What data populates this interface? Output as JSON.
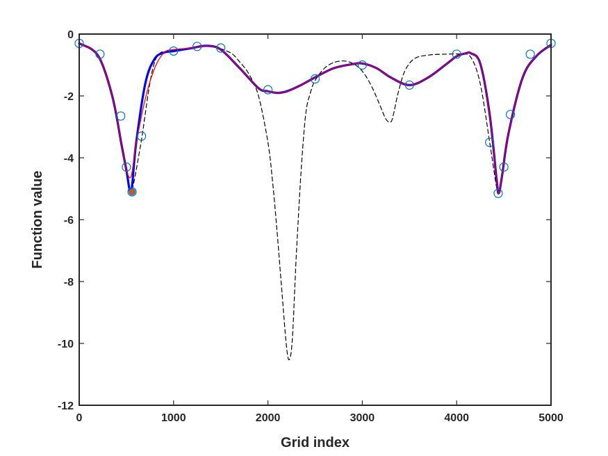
{
  "chart_data": {
    "type": "line",
    "title": "",
    "xlabel": "Grid index",
    "ylabel": "Function value",
    "xlim": [
      0,
      5000
    ],
    "ylim": [
      -12,
      0
    ],
    "grid": false,
    "box": true,
    "xticks": [
      0,
      1000,
      2000,
      3000,
      4000,
      5000
    ],
    "xtick_labels": [
      "0",
      "1000",
      "2000",
      "3000",
      "4000",
      "5000"
    ],
    "yticks": [
      0,
      -2,
      -4,
      -6,
      -8,
      -10,
      -12
    ],
    "ytick_labels": [
      "0",
      "-2",
      "-4",
      "-6",
      "-8",
      "-10",
      "-12"
    ],
    "series": [
      {
        "style": "dashed",
        "color": "#000000",
        "x": [
          0,
          200,
          350,
          450,
          500,
          550,
          650,
          800,
          1000,
          1200,
          1400,
          1600,
          1700,
          1800,
          1900,
          2000,
          2050,
          2100,
          2150,
          2200,
          2230,
          2260,
          2300,
          2350,
          2400,
          2450,
          2500,
          2600,
          2700,
          2800,
          2900,
          3000,
          3100,
          3200,
          3250,
          3300,
          3330,
          3380,
          3450,
          3550,
          3700,
          3900,
          4050,
          4150,
          4250,
          4350,
          4420,
          4445,
          4480,
          4550,
          4700,
          4850,
          5000
        ],
        "y": [
          -0.3,
          -0.7,
          -2.0,
          -3.6,
          -4.3,
          -5.1,
          -3.6,
          -0.9,
          -0.55,
          -0.45,
          -0.4,
          -0.6,
          -0.9,
          -1.3,
          -2.0,
          -3.5,
          -4.8,
          -6.5,
          -8.4,
          -10.2,
          -10.5,
          -9.8,
          -7.2,
          -4.5,
          -2.6,
          -1.9,
          -1.5,
          -1.1,
          -0.92,
          -0.87,
          -0.95,
          -1.2,
          -1.7,
          -2.4,
          -2.75,
          -2.85,
          -2.6,
          -1.9,
          -1.2,
          -0.8,
          -0.68,
          -0.65,
          -0.65,
          -0.75,
          -1.6,
          -3.5,
          -4.9,
          -5.15,
          -4.6,
          -3.2,
          -1.4,
          -0.7,
          -0.35
        ]
      },
      {
        "style": "solid",
        "color": "#ff0000",
        "x": [
          0,
          200,
          350,
          450,
          500,
          550,
          600,
          700,
          800,
          900,
          1000,
          1200,
          1350,
          1500,
          1700,
          1900,
          2000,
          2100,
          2200,
          2350,
          2500,
          2700,
          2900,
          3000,
          3150,
          3300,
          3500,
          3700,
          3900,
          4000,
          4100,
          4150,
          4250,
          4350,
          4420,
          4445,
          4480,
          4550,
          4700,
          4850,
          5000
        ],
        "y": [
          -0.3,
          -0.7,
          -2.0,
          -3.6,
          -4.4,
          -4.6,
          -3.6,
          -2.1,
          -1.1,
          -0.6,
          -0.5,
          -0.45,
          -0.38,
          -0.5,
          -1.1,
          -1.75,
          -1.85,
          -1.9,
          -1.85,
          -1.65,
          -1.4,
          -1.1,
          -0.97,
          -0.95,
          -1.1,
          -1.4,
          -1.65,
          -1.4,
          -0.95,
          -0.72,
          -0.62,
          -0.62,
          -0.95,
          -2.6,
          -4.6,
          -5.15,
          -4.6,
          -3.2,
          -1.4,
          -0.7,
          -0.35
        ]
      },
      {
        "style": "solid-thick",
        "color": "#0000ff",
        "x": [
          0,
          200,
          350,
          450,
          500,
          550,
          600,
          700,
          800,
          900,
          1000,
          1200,
          1350,
          1500,
          1700,
          1900,
          2000,
          2100,
          2200,
          2350,
          2500,
          2700,
          2900,
          3000,
          3150,
          3300,
          3500,
          3700,
          3900,
          4000,
          4100,
          4150,
          4250,
          4350,
          4420,
          4445,
          4480,
          4550,
          4700,
          4850,
          5000
        ],
        "y": [
          -0.3,
          -0.7,
          -2.0,
          -3.6,
          -4.4,
          -5.1,
          -3.6,
          -1.6,
          -0.8,
          -0.6,
          -0.55,
          -0.45,
          -0.38,
          -0.5,
          -1.1,
          -1.75,
          -1.85,
          -1.9,
          -1.85,
          -1.65,
          -1.4,
          -1.1,
          -0.97,
          -0.95,
          -1.1,
          -1.4,
          -1.65,
          -1.4,
          -0.95,
          -0.72,
          -0.62,
          -0.62,
          -0.95,
          -2.6,
          -4.6,
          -5.15,
          -4.6,
          -3.2,
          -1.4,
          -0.7,
          -0.35
        ]
      },
      {
        "style": "markers-open-circle",
        "color": "#0072bd",
        "x": [
          0,
          220,
          440,
          500,
          560,
          660,
          1000,
          1250,
          1500,
          2000,
          2500,
          3000,
          3500,
          4000,
          4350,
          4440,
          4500,
          4570,
          4780,
          5000
        ],
        "y": [
          -0.3,
          -0.65,
          -2.65,
          -4.3,
          -5.1,
          -3.3,
          -0.55,
          -0.4,
          -0.45,
          -1.8,
          -1.45,
          -1.0,
          -1.65,
          -0.65,
          -3.5,
          -5.15,
          -4.3,
          -2.6,
          -0.65,
          -0.3
        ]
      },
      {
        "style": "marker-filled-circle",
        "color": "#d95319",
        "x": [
          560
        ],
        "y": [
          -5.1
        ]
      }
    ]
  }
}
